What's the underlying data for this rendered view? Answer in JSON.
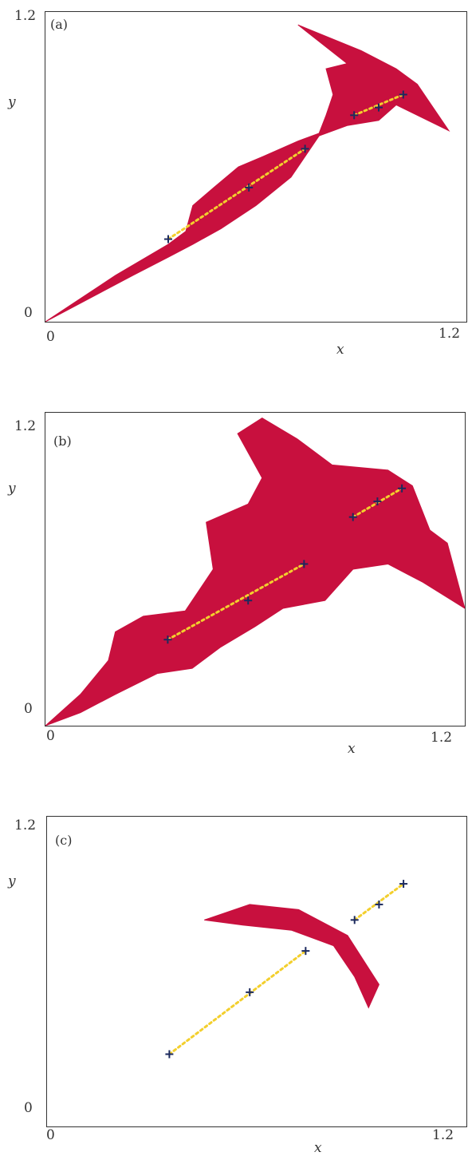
{
  "colors": {
    "set": "#c8103e",
    "segment": "#f3cf2d",
    "marker": "#1c2a5e",
    "frame": "#333333"
  },
  "chart_data": [
    {
      "type": "scatter",
      "panel_label": "(a)",
      "xlabel": "x",
      "ylabel": "y",
      "xlim": [
        0,
        1.2
      ],
      "ylim": [
        0,
        1.2
      ],
      "x_ticks": [
        "0",
        "1.2"
      ],
      "y_ticks": [
        "0",
        "1.2"
      ],
      "grid": false,
      "markers": [
        [
          0.35,
          0.32
        ],
        [
          0.58,
          0.52
        ],
        [
          0.74,
          0.67
        ],
        [
          0.88,
          0.8
        ],
        [
          0.95,
          0.83
        ],
        [
          1.02,
          0.88
        ]
      ],
      "segments": [
        [
          [
            0.35,
            0.32
          ],
          [
            0.74,
            0.67
          ]
        ],
        [
          [
            0.88,
            0.8
          ],
          [
            1.02,
            0.88
          ]
        ]
      ],
      "region": [
        [
          0,
          0
        ],
        [
          0.2,
          0.18
        ],
        [
          0.35,
          0.3
        ],
        [
          0.4,
          0.35
        ],
        [
          0.42,
          0.45
        ],
        [
          0.48,
          0.52
        ],
        [
          0.55,
          0.6
        ],
        [
          0.62,
          0.64
        ],
        [
          0.72,
          0.7
        ],
        [
          0.78,
          0.73
        ],
        [
          0.8,
          0.8
        ],
        [
          0.82,
          0.88
        ],
        [
          0.8,
          0.98
        ],
        [
          0.86,
          1.0
        ],
        [
          0.72,
          1.15
        ],
        [
          0.9,
          1.05
        ],
        [
          1.0,
          0.98
        ],
        [
          1.06,
          0.92
        ],
        [
          1.15,
          0.74
        ],
        [
          1.0,
          0.84
        ],
        [
          0.95,
          0.78
        ],
        [
          0.86,
          0.76
        ],
        [
          0.78,
          0.72
        ],
        [
          0.74,
          0.64
        ],
        [
          0.7,
          0.56
        ],
        [
          0.6,
          0.45
        ],
        [
          0.5,
          0.36
        ],
        [
          0.42,
          0.3
        ],
        [
          0.35,
          0.25
        ],
        [
          0.25,
          0.18
        ],
        [
          0,
          0
        ]
      ]
    },
    {
      "type": "scatter",
      "panel_label": "(b)",
      "xlabel": "x",
      "ylabel": "y",
      "xlim": [
        0,
        1.2
      ],
      "ylim": [
        0,
        1.2
      ],
      "x_ticks": [
        "0",
        "1.2"
      ],
      "y_ticks": [
        "0",
        "1.2"
      ],
      "grid": false,
      "markers": [
        [
          0.35,
          0.33
        ],
        [
          0.58,
          0.48
        ],
        [
          0.74,
          0.62
        ],
        [
          0.88,
          0.8
        ],
        [
          0.95,
          0.86
        ],
        [
          1.02,
          0.91
        ]
      ],
      "segments": [
        [
          [
            0.35,
            0.33
          ],
          [
            0.74,
            0.62
          ]
        ],
        [
          [
            0.88,
            0.8
          ],
          [
            1.02,
            0.91
          ]
        ]
      ],
      "region": [
        [
          0,
          0
        ],
        [
          0.1,
          0.12
        ],
        [
          0.18,
          0.25
        ],
        [
          0.2,
          0.36
        ],
        [
          0.28,
          0.42
        ],
        [
          0.4,
          0.44
        ],
        [
          0.48,
          0.6
        ],
        [
          0.46,
          0.78
        ],
        [
          0.58,
          0.85
        ],
        [
          0.62,
          0.95
        ],
        [
          0.55,
          1.12
        ],
        [
          0.62,
          1.18
        ],
        [
          0.72,
          1.1
        ],
        [
          0.82,
          1.0
        ],
        [
          0.98,
          0.98
        ],
        [
          1.05,
          0.92
        ],
        [
          1.1,
          0.75
        ],
        [
          1.15,
          0.7
        ],
        [
          1.2,
          0.45
        ],
        [
          1.08,
          0.55
        ],
        [
          0.98,
          0.62
        ],
        [
          0.88,
          0.6
        ],
        [
          0.8,
          0.48
        ],
        [
          0.68,
          0.45
        ],
        [
          0.6,
          0.38
        ],
        [
          0.5,
          0.3
        ],
        [
          0.42,
          0.22
        ],
        [
          0.32,
          0.2
        ],
        [
          0.2,
          0.12
        ],
        [
          0.1,
          0.05
        ],
        [
          0,
          0
        ]
      ]
    },
    {
      "type": "scatter",
      "panel_label": "(c)",
      "xlabel": "x",
      "ylabel": "y",
      "xlim": [
        0,
        1.2
      ],
      "ylim": [
        0,
        1.2
      ],
      "x_ticks": [
        "0",
        "1.2"
      ],
      "y_ticks": [
        "0",
        "1.2"
      ],
      "grid": false,
      "markers": [
        [
          0.35,
          0.28
        ],
        [
          0.58,
          0.52
        ],
        [
          0.74,
          0.68
        ],
        [
          0.88,
          0.8
        ],
        [
          0.95,
          0.86
        ],
        [
          1.02,
          0.94
        ]
      ],
      "segments": [
        [
          [
            0.35,
            0.28
          ],
          [
            0.74,
            0.68
          ]
        ],
        [
          [
            0.88,
            0.8
          ],
          [
            1.02,
            0.94
          ]
        ]
      ],
      "region": [
        [
          0.45,
          0.8
        ],
        [
          0.58,
          0.86
        ],
        [
          0.72,
          0.84
        ],
        [
          0.86,
          0.74
        ],
        [
          0.95,
          0.55
        ],
        [
          0.92,
          0.46
        ],
        [
          0.88,
          0.58
        ],
        [
          0.82,
          0.7
        ],
        [
          0.7,
          0.76
        ],
        [
          0.56,
          0.78
        ],
        [
          0.45,
          0.8
        ]
      ]
    }
  ]
}
